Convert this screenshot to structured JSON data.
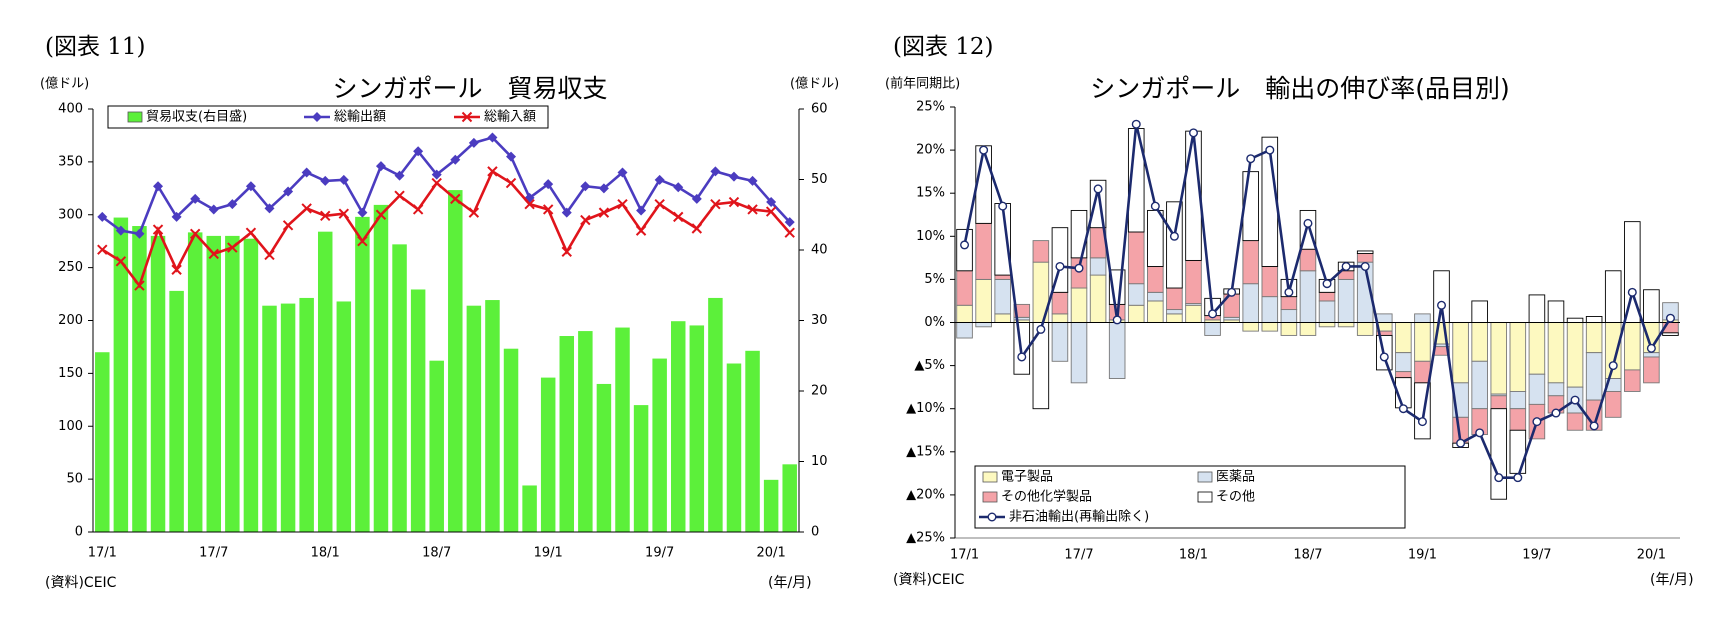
{
  "chart_data": [
    {
      "type": "combo",
      "figure_label": "(図表 11)",
      "title": "シンガポール　貿易収支",
      "y_label": "(億ドル)",
      "y2_label": "(億ドル)",
      "x_label": "(年/月)",
      "source": "(資料)CEIC",
      "legend": "top",
      "grid": false,
      "categories": [
        "17/1",
        null,
        null,
        null,
        null,
        null,
        "17/7",
        null,
        null,
        null,
        null,
        null,
        "18/1",
        null,
        null,
        null,
        null,
        null,
        "18/7",
        null,
        null,
        null,
        null,
        null,
        "19/1",
        null,
        null,
        null,
        null,
        null,
        "19/7",
        null,
        null,
        null,
        null,
        null,
        "20/1",
        null
      ],
      "ylim": [
        0,
        400
      ],
      "yticks": [
        0,
        50,
        100,
        150,
        200,
        250,
        300,
        350,
        400
      ],
      "y2lim": [
        0,
        60
      ],
      "y2ticks": [
        0,
        10,
        20,
        30,
        40,
        50,
        60
      ],
      "series": [
        {
          "name": "貿易収支(右目盛)",
          "kind": "bar",
          "axis": "y2",
          "color": "#5cf03a",
          "values": [
            25.5,
            44.6,
            43.4,
            42,
            34.2,
            42.5,
            42,
            42,
            41.6,
            32.1,
            32.4,
            33.2,
            42.6,
            32.7,
            44.7,
            46.4,
            40.8,
            34.4,
            24.3,
            48.5,
            32.1,
            32.9,
            26,
            6.6,
            21.9,
            27.8,
            28.5,
            21,
            29,
            18,
            24.6,
            29.9,
            29.3,
            33.2,
            23.9,
            25.7,
            7.4,
            9.6
          ]
        },
        {
          "name": "総輸出額",
          "kind": "line",
          "marker": "diamond",
          "color": "#4b3cc0",
          "values": [
            298,
            285,
            282,
            327,
            298,
            315,
            305,
            310,
            327,
            306,
            322,
            340,
            332,
            333,
            302,
            346,
            337,
            360,
            338,
            352,
            368,
            373,
            355,
            316,
            329,
            302,
            327,
            325,
            340,
            304,
            333,
            326,
            315,
            341,
            336,
            332,
            312,
            293
          ]
        },
        {
          "name": "総輸入額",
          "kind": "line",
          "marker": "x",
          "color": "#e0141b",
          "values": [
            267,
            256,
            233,
            286,
            248,
            282,
            263,
            269,
            283,
            262,
            290,
            306,
            299,
            301,
            275,
            300,
            318,
            305,
            330,
            315,
            302,
            341,
            330,
            310,
            305,
            265,
            295,
            302,
            310,
            285,
            310,
            298,
            287,
            310,
            312,
            305,
            303,
            283
          ]
        }
      ]
    },
    {
      "type": "stacked_combo",
      "figure_label": "(図表 12)",
      "title": "シンガポール　輸出の伸び率(品目別)",
      "y_label": "(前年同期比)",
      "x_label": "(年/月)",
      "source": "(資料)CEIC",
      "legend": "bottom-left",
      "grid": false,
      "categories": [
        "17/1",
        null,
        null,
        null,
        null,
        null,
        "17/7",
        null,
        null,
        null,
        null,
        null,
        "18/1",
        null,
        null,
        null,
        null,
        null,
        "18/7",
        null,
        null,
        null,
        null,
        null,
        "19/1",
        null,
        null,
        null,
        null,
        null,
        "19/7",
        null,
        null,
        null,
        null,
        null,
        "20/1",
        null
      ],
      "ylim": [
        -25,
        25
      ],
      "yticks": [
        {
          "value": -25,
          "label": "▲25%"
        },
        {
          "value": -20,
          "label": "▲20%"
        },
        {
          "value": -15,
          "label": "▲15%"
        },
        {
          "value": -10,
          "label": "▲10%"
        },
        {
          "value": -5,
          "label": "▲5%"
        },
        {
          "value": 0,
          "label": "0%"
        },
        {
          "value": 5,
          "label": "5%"
        },
        {
          "value": 10,
          "label": "10%"
        },
        {
          "value": 15,
          "label": "15%"
        },
        {
          "value": 20,
          "label": "20%"
        },
        {
          "value": 25,
          "label": "25%"
        }
      ],
      "series": [
        {
          "name": "電子製品",
          "kind": "bar",
          "color": "#fdf9c0",
          "values": [
            2,
            5,
            1,
            0.3,
            7,
            1,
            4,
            5.5,
            0.3,
            2,
            2.5,
            1,
            2,
            0.3,
            0.3,
            -1,
            -1,
            -1.5,
            -1.5,
            -0.5,
            -0.5,
            -1.5,
            -1,
            -3.5,
            -4.5,
            -2.5,
            -7,
            -4.5,
            -8.3,
            -8,
            -6,
            -7,
            -7.5,
            -3.5,
            -6.5,
            -5.5,
            -3.5,
            0.3
          ]
        },
        {
          "name": "医薬品",
          "kind": "bar",
          "color": "#d6e2f0",
          "values": [
            -1.8,
            -0.5,
            4,
            0.3,
            0,
            -4.5,
            -7,
            2,
            -6.5,
            2.5,
            1,
            0.5,
            0.2,
            -1.5,
            0.3,
            4.5,
            3,
            1.5,
            6,
            2.5,
            5,
            7,
            1,
            -2.2,
            1,
            -0.3,
            -4,
            -5.5,
            -0.2,
            -2,
            -3.5,
            -1.5,
            -3,
            -5.5,
            -1.5,
            0,
            -0.5,
            2
          ]
        },
        {
          "name": "その他化学製品",
          "kind": "bar",
          "color": "#f4a3a8",
          "values": [
            4,
            6.5,
            0.5,
            1.5,
            2.5,
            2.5,
            3.5,
            3.5,
            1.8,
            6,
            3,
            2.5,
            5,
            0.5,
            2.7,
            5,
            3.5,
            1.5,
            2.5,
            1,
            1,
            1,
            -0.5,
            -0.7,
            -2.5,
            -1,
            -3,
            -3,
            -1.5,
            -2.5,
            -4,
            -2,
            -2,
            -3.5,
            -3,
            -2.5,
            -3,
            -1.2
          ]
        },
        {
          "name": "その他",
          "kind": "bar",
          "color": "#ffffff",
          "values": [
            4.8,
            9,
            8.3,
            -6,
            -10,
            7.5,
            5.5,
            5.5,
            4,
            12,
            6.5,
            10,
            15,
            2,
            0.6,
            8,
            15,
            2,
            4.5,
            1.5,
            1,
            0.3,
            -4,
            -3.5,
            -6.5,
            6,
            -0.5,
            2.5,
            -10.5,
            -5,
            3.2,
            2.5,
            0.5,
            0.7,
            6,
            11.7,
            3.8,
            -0.3
          ]
        },
        {
          "name": "非石油輸出(再輸出除く)",
          "kind": "line",
          "marker": "circle",
          "color": "#1c2a6e",
          "values": [
            9,
            20,
            13.5,
            -4,
            -0.8,
            6.5,
            6.3,
            15.5,
            0.3,
            23,
            13.5,
            10,
            22,
            1,
            3.5,
            19,
            20,
            3.5,
            11.5,
            4.5,
            6.5,
            6.5,
            -4,
            -10,
            -11.5,
            2,
            -14,
            -12.8,
            -18,
            -18,
            -11.5,
            -10.5,
            -9,
            -12,
            -5,
            3.5,
            -3,
            0.5
          ]
        }
      ]
    }
  ]
}
